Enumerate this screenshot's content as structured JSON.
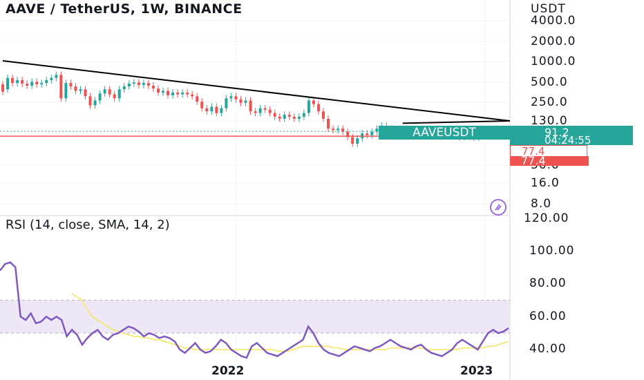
{
  "header": {
    "title": "AAVE / TetherUS, 1W, BINANCE",
    "rsi_title": "RSI (14, close, SMA, 14, 2)"
  },
  "price_axis": {
    "unit": "USDT",
    "ticks": [
      "4000.0",
      "2000.0",
      "1000.0",
      "500.0",
      "250.0",
      "130.0",
      "30.0",
      "16.0",
      "8.0"
    ]
  },
  "rsi_axis": {
    "ticks": [
      "120.00",
      "100.00",
      "80.00",
      "60.00",
      "40.00"
    ]
  },
  "time_axis": {
    "labels": [
      "2022",
      "2023"
    ]
  },
  "badges": {
    "symbol": "AAVEUSDT",
    "last_price": "91.2",
    "countdown": "04:24:55",
    "level_a": "77.4",
    "level_b": "77.4"
  },
  "colors": {
    "up": "#26a69a",
    "down": "#ef5350",
    "rsi_line": "#7e57c2",
    "rsi_sma": "#f5e65a",
    "rsi_band": "#ede7f6",
    "trendline": "#000000"
  },
  "chart_data": [
    {
      "type": "candlestick",
      "title": "AAVE / TetherUS, 1W, BINANCE",
      "y_scale": "log",
      "ylabel": "USDT",
      "ylim": [
        5,
        6000
      ],
      "horizontal_level": 77.4,
      "last_price": 91.2,
      "trendlines": [
        {
          "from": [
            "2020-10",
            1000
          ],
          "to": [
            "2022-12",
            130
          ]
        },
        {
          "from": [
            "2022-05",
            120
          ],
          "to": [
            "2022-12",
            130
          ]
        },
        {
          "from": [
            "2022-12",
            78
          ],
          "to": [
            "2023-01",
            95
          ]
        }
      ],
      "series": [
        {
          "values": [
            [
              450,
              350
            ],
            [
              380,
              560
            ],
            [
              560,
              470
            ],
            [
              470,
              520
            ],
            [
              520,
              460
            ],
            [
              460,
              430
            ],
            [
              430,
              490
            ],
            [
              490,
              450
            ],
            [
              450,
              470
            ],
            [
              470,
              520
            ],
            [
              520,
              560
            ],
            [
              560,
              620
            ],
            [
              620,
              280
            ],
            [
              280,
              470
            ],
            [
              470,
              420
            ],
            [
              420,
              360
            ],
            [
              360,
              380
            ],
            [
              380,
              300
            ],
            [
              300,
              220
            ],
            [
              220,
              260
            ],
            [
              260,
              330
            ],
            [
              330,
              380
            ],
            [
              380,
              320
            ],
            [
              320,
              280
            ],
            [
              280,
              380
            ],
            [
              380,
              420
            ],
            [
              420,
              460
            ],
            [
              460,
              480
            ],
            [
              480,
              440
            ],
            [
              440,
              470
            ],
            [
              470,
              430
            ],
            [
              430,
              390
            ],
            [
              390,
              340
            ],
            [
              340,
              360
            ],
            [
              360,
              310
            ],
            [
              310,
              340
            ],
            [
              340,
              320
            ],
            [
              320,
              340
            ],
            [
              340,
              320
            ],
            [
              320,
              300
            ],
            [
              300,
              250
            ],
            [
              250,
              200
            ],
            [
              200,
              180
            ],
            [
              180,
              210
            ],
            [
              210,
              170
            ],
            [
              170,
              200
            ],
            [
              200,
              280
            ],
            [
              280,
              300
            ],
            [
              300,
              270
            ],
            [
              270,
              240
            ],
            [
              240,
              260
            ],
            [
              260,
              180
            ],
            [
              180,
              170
            ],
            [
              170,
              200
            ],
            [
              200,
              190
            ],
            [
              190,
              170
            ],
            [
              170,
              150
            ],
            [
              150,
              140
            ],
            [
              140,
              160
            ],
            [
              160,
              150
            ],
            [
              150,
              140
            ],
            [
              140,
              150
            ],
            [
              150,
              170
            ],
            [
              170,
              260
            ],
            [
              260,
              230
            ],
            [
              230,
              180
            ],
            [
              180,
              140
            ],
            [
              140,
              100
            ],
            [
              100,
              95
            ],
            [
              95,
              100
            ],
            [
              100,
              90
            ],
            [
              90,
              75
            ],
            [
              75,
              60
            ],
            [
              60,
              72
            ],
            [
              72,
              85
            ],
            [
              85,
              80
            ],
            [
              80,
              90
            ],
            [
              90,
              100
            ],
            [
              100,
              110
            ],
            [
              110,
              100
            ],
            [
              100,
              95
            ],
            [
              95,
              90
            ],
            [
              90,
              88
            ],
            [
              88,
              85
            ],
            [
              85,
              90
            ],
            [
              90,
              95
            ],
            [
              95,
              88
            ],
            [
              88,
              86
            ],
            [
              86,
              84
            ],
            [
              84,
              85
            ],
            [
              85,
              88
            ],
            [
              88,
              90
            ],
            [
              90,
              82
            ],
            [
              82,
              78
            ],
            [
              78,
              75
            ],
            [
              75,
              78
            ],
            [
              78,
              76
            ],
            [
              76,
              74
            ],
            [
              74,
              77
            ],
            [
              77,
              91
            ]
          ]
        }
      ]
    },
    {
      "type": "line",
      "title": "RSI (14, close, SMA, 14, 2)",
      "ylim": [
        30,
        120
      ],
      "bands": [
        50,
        70
      ],
      "series": [
        {
          "name": "RSI",
          "values": [
            88,
            92,
            93,
            90,
            60,
            58,
            62,
            56,
            57,
            60,
            58,
            60,
            58,
            48,
            52,
            49,
            43,
            47,
            50,
            52,
            48,
            46,
            49,
            50,
            52,
            54,
            53,
            51,
            48,
            50,
            49,
            47,
            48,
            47,
            45,
            40,
            38,
            41,
            44,
            40,
            38,
            39,
            42,
            46,
            44,
            40,
            38,
            36,
            35,
            42,
            44,
            41,
            38,
            37,
            36,
            38,
            40,
            42,
            44,
            46,
            54,
            50,
            44,
            40,
            38,
            37,
            36,
            38,
            40,
            42,
            41,
            40,
            39,
            41,
            42,
            44,
            46,
            44,
            42,
            41,
            40,
            42,
            43,
            40,
            38,
            37,
            36,
            38,
            40,
            44,
            46,
            44,
            42,
            40,
            45,
            50,
            52,
            50,
            51,
            53
          ]
        },
        {
          "name": "RSI-based MA",
          "values": [
            null,
            null,
            null,
            null,
            null,
            null,
            null,
            null,
            null,
            null,
            null,
            null,
            null,
            null,
            74,
            72,
            70,
            64,
            60,
            58,
            56,
            54,
            52,
            51,
            50,
            49,
            48,
            48,
            47,
            47,
            46,
            46,
            45,
            44,
            43,
            42,
            41,
            41,
            40,
            40,
            40,
            40,
            40,
            40,
            40,
            40,
            40,
            40,
            40,
            40,
            40,
            40,
            40,
            40,
            39,
            39,
            39,
            40,
            41,
            42,
            42,
            42,
            42,
            42,
            42,
            41,
            41,
            40,
            40,
            40,
            40,
            40,
            40,
            40,
            40,
            40,
            41,
            41,
            41,
            41,
            41,
            41,
            41,
            40,
            40,
            40,
            40,
            40,
            40,
            40,
            41,
            41,
            41,
            41,
            41,
            42,
            42,
            43,
            44,
            45
          ]
        }
      ]
    }
  ]
}
